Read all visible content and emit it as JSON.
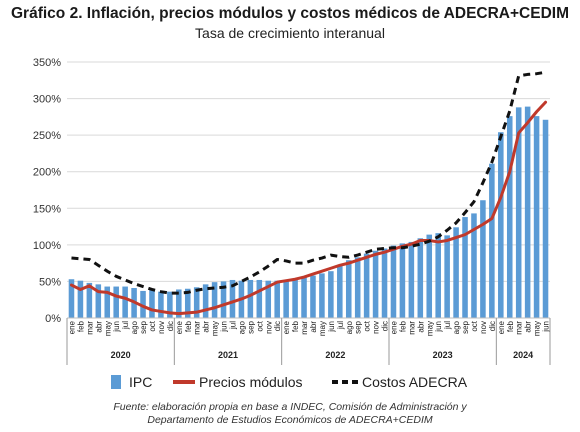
{
  "title": "Gráfico 2. Inflación, precios módulos y costos médicos de ADECRA+CEDIM",
  "subtitle": "Tasa de crecimiento interanual",
  "source": {
    "line1": "Fuente: elaboración propia en base a INDEC, Comisión de Administración y",
    "line2": "Departamento de Estudios Económicos de ADECRA+CEDIM"
  },
  "chart_data": {
    "type": "bar+line",
    "title": "Gráfico 2. Inflación, precios módulos y costos médicos de ADECRA+CEDIM",
    "subtitle": "Tasa de crecimiento interanual",
    "y_unit": "%",
    "ylim": [
      0,
      350
    ],
    "yticks": [
      0,
      50,
      100,
      150,
      200,
      250,
      300,
      350
    ],
    "grid": true,
    "legend_position": "bottom",
    "months": [
      "ene",
      "feb",
      "mar",
      "abr",
      "may",
      "jun",
      "jul",
      "ago",
      "sep",
      "oct",
      "nov",
      "dic",
      "ene",
      "feb",
      "mar",
      "abr",
      "may",
      "jun",
      "jul",
      "ago",
      "sep",
      "oct",
      "nov",
      "dic",
      "ene",
      "feb",
      "mar",
      "abr",
      "may",
      "jun",
      "jul",
      "ago",
      "sep",
      "oct",
      "nov",
      "dic",
      "ene",
      "feb",
      "mar",
      "abr",
      "may",
      "jun",
      "jul",
      "ago",
      "sep",
      "oct",
      "nov",
      "dic",
      "ene",
      "feb",
      "mar",
      "abr",
      "may",
      "jun"
    ],
    "years": [
      {
        "label": "2020",
        "months": 12
      },
      {
        "label": "2021",
        "months": 12
      },
      {
        "label": "2022",
        "months": 12
      },
      {
        "label": "2023",
        "months": 12
      },
      {
        "label": "2024",
        "months": 6
      }
    ],
    "series": [
      {
        "name": "IPC",
        "kind": "bar",
        "color": "#5b9bd5",
        "values": [
          53,
          51,
          48,
          46,
          43,
          43,
          43,
          41,
          37,
          38,
          36,
          36,
          39,
          40,
          42,
          46,
          49,
          50,
          52,
          51,
          52,
          52,
          51,
          51,
          51,
          52,
          56,
          58,
          61,
          64,
          71,
          79,
          83,
          88,
          92,
          95,
          99,
          102,
          104,
          109,
          114,
          116,
          113,
          124,
          138,
          143,
          161,
          211,
          254,
          276,
          288,
          289,
          276,
          271
        ]
      },
      {
        "name": "Precios módulos",
        "kind": "line",
        "color": "#c0392b",
        "values": [
          45,
          39,
          44,
          36,
          35,
          30,
          27,
          22,
          16,
          11,
          9,
          7,
          6,
          7,
          8,
          11,
          14,
          18,
          22,
          26,
          31,
          37,
          43,
          49,
          51,
          53,
          56,
          60,
          64,
          68,
          72,
          75,
          79,
          83,
          87,
          90,
          94,
          98,
          101,
          106,
          106,
          104,
          106,
          110,
          114,
          121,
          128,
          136,
          165,
          200,
          253,
          267,
          282,
          295
        ]
      },
      {
        "name": "Costos ADECRA",
        "kind": "line",
        "dashed": true,
        "color": "#111111",
        "values": [
          82,
          81,
          80,
          72,
          64,
          57,
          52,
          47,
          43,
          39,
          36,
          34,
          34,
          35,
          38,
          40,
          41,
          42,
          44,
          50,
          56,
          63,
          71,
          80,
          78,
          75,
          75,
          79,
          82,
          86,
          84,
          83,
          86,
          90,
          94,
          95,
          96,
          96,
          98,
          101,
          105,
          111,
          120,
          130,
          144,
          159,
          185,
          213,
          248,
          283,
          331,
          333,
          334,
          336
        ]
      }
    ]
  }
}
